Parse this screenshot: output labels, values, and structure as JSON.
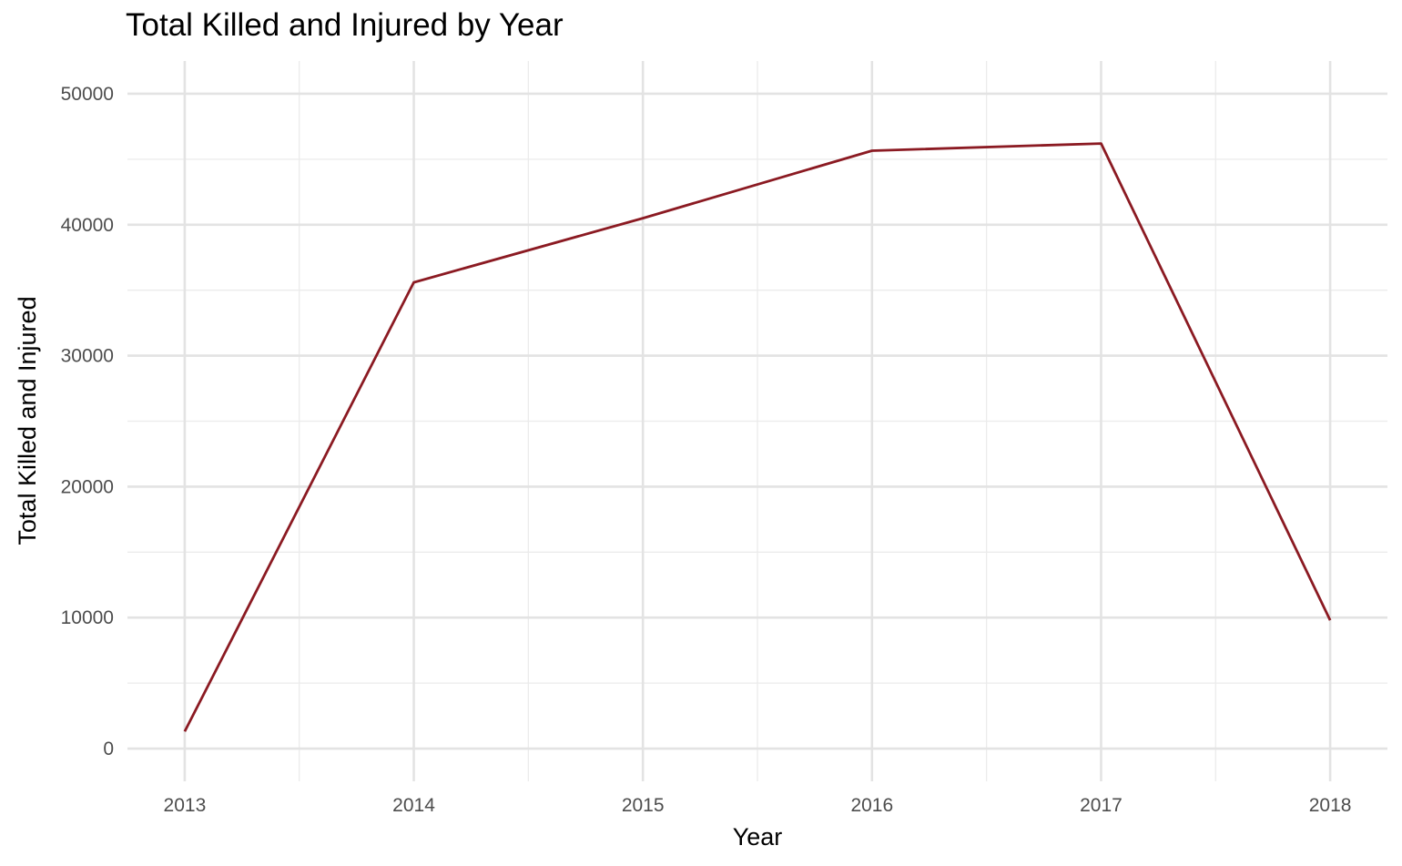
{
  "chart_data": {
    "type": "line",
    "title": "Total Killed and Injured by Year",
    "xlabel": "Year",
    "ylabel": "Total Killed and Injured",
    "x": [
      2013,
      2014,
      2015,
      2016,
      2017,
      2018
    ],
    "series": [
      {
        "values": [
          1300,
          35600,
          40500,
          45650,
          46200,
          9800
        ],
        "color": "#8b1a22"
      }
    ],
    "xlim": [
      2012.75,
      2018.25
    ],
    "ylim": [
      -2500,
      52500
    ],
    "x_ticks": [
      "2013",
      "2014",
      "2015",
      "2016",
      "2017",
      "2018"
    ],
    "y_ticks": [
      "0",
      "10000",
      "20000",
      "30000",
      "40000",
      "50000"
    ],
    "grid": true,
    "legend": "none"
  }
}
